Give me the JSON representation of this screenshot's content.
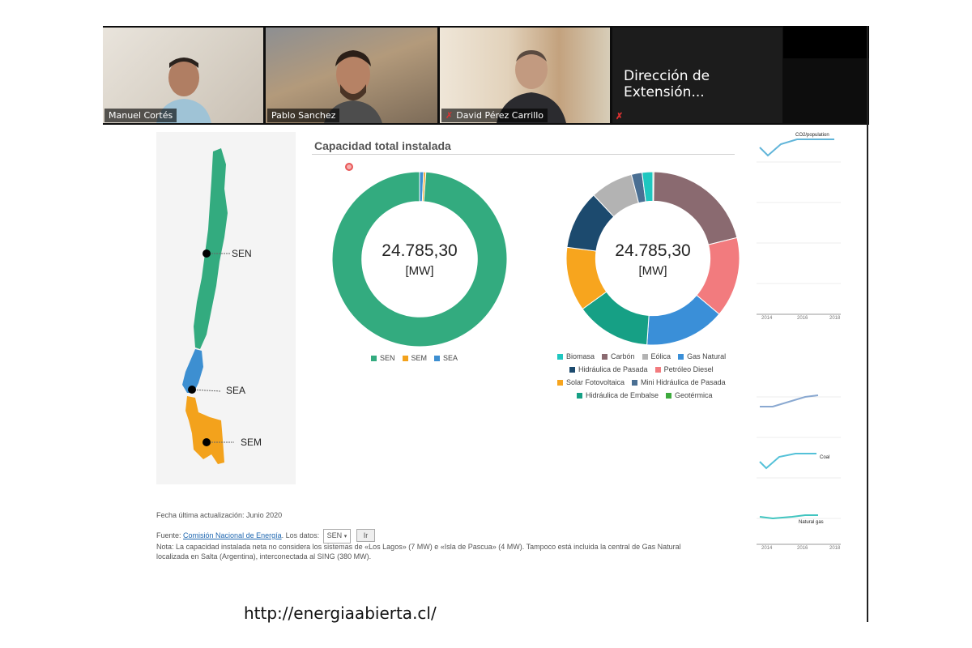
{
  "participants": [
    {
      "name": "Manuel Cortés",
      "muted": false,
      "active": false
    },
    {
      "name": "Pablo Sanchez",
      "muted": false,
      "active": true
    },
    {
      "name": "David Pérez Carrillo",
      "muted": true,
      "active": false
    }
  ],
  "meeting_label": "Dirección de Extensión...",
  "map_labels": {
    "sen": "SEN",
    "sea": "SEA",
    "sem": "SEM"
  },
  "section_title": "Capacidad total instalada",
  "donuts": {
    "left": {
      "value": "24.785,30",
      "unit": "[MW]"
    },
    "right": {
      "value": "24.785,30",
      "unit": "[MW]"
    }
  },
  "colors": {
    "sen": "#33ab7f",
    "sem": "#f3a21c",
    "sea": "#3d8fd1",
    "biomasa": "#1fc7c0",
    "carbon": "#8a6a70",
    "eolica": "#b3b3b3",
    "gas_natural": "#3a8fd8",
    "hidraulica_pasada": "#1c4a6e",
    "petroleo_diesel": "#f27b7e",
    "solar_fotovoltaica": "#f7a51e",
    "mini_hidraulica": "#4a6f93",
    "hidraulica_embalse": "#16a085",
    "geotermica": "#3daa3d"
  },
  "chart_data": [
    {
      "type": "pie",
      "title": "",
      "categories": [
        "SEN",
        "SEM",
        "SEA"
      ],
      "values": [
        24500,
        100,
        185
      ]
    },
    {
      "type": "pie",
      "title": "",
      "categories": [
        "Biomasa",
        "Carbón",
        "Eólica",
        "Gas Natural",
        "Hidráulica de Pasada",
        "Petróleo Diesel",
        "Solar Fotovoltaica",
        "Mini Hidráulica de Pasada",
        "Hidráulica de Embalse",
        "Geotérmica"
      ],
      "values": [
        2,
        21,
        8,
        15,
        11,
        15,
        12,
        2,
        14,
        0.2
      ]
    }
  ],
  "legend_left": [
    "SEN",
    "SEM",
    "SEA"
  ],
  "legend_right": {
    "row1": [
      "Biomasa",
      "Carbón",
      "Eólica",
      "Gas Natural"
    ],
    "row2": [
      "Hidráulica de Pasada",
      "Petróleo Diesel"
    ],
    "row3": [
      "Solar Fotovoltaica",
      "Mini Hidráulica de Pasada"
    ],
    "row4": [
      "Hidráulica de Embalse",
      "Geotérmica"
    ]
  },
  "footer": {
    "updated": "Fecha última actualización: Junio 2020",
    "source_prefix": "Fuente: ",
    "source_link": "Comisión Nacional de Energía",
    "data_label": ". Los datos:",
    "select_value": "SEN",
    "button": "Ir",
    "note_line1": "Nota: La capacidad instalada neta no considera los sistemas de «Los Lagos» (7 MW) e «Isla de Pascua» (4 MW). Tampoco está incluida la central de Gas Natural",
    "note_line2": "localizada en Salta (Argentina), interconectada al SING (380 MW)."
  },
  "url": "http://energiaabierta.cl/",
  "side_charts": {
    "top_label": "CO2/population",
    "coal_label": "Coal",
    "gas_label": "Natural gas",
    "years": [
      "2014",
      "2016",
      "2018"
    ]
  }
}
